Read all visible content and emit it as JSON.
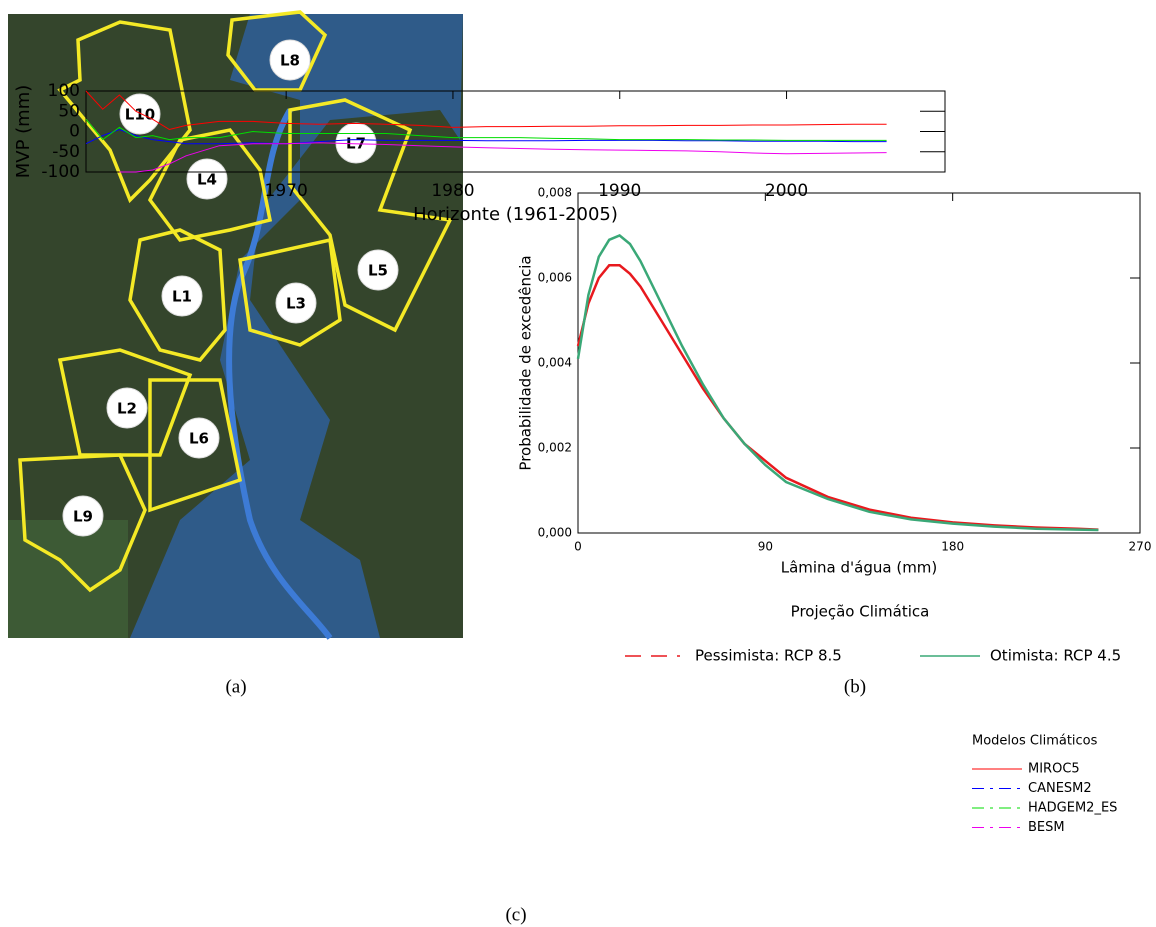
{
  "map": {
    "caption": "(a)",
    "labels": [
      "L8",
      "L10",
      "L7",
      "L4",
      "L5",
      "L1",
      "L3",
      "L2",
      "L6",
      "L9"
    ]
  },
  "chart_data": [
    {
      "type": "line",
      "caption": "(b)",
      "xlabel": "Lâmina d'água (mm)",
      "ylabel": "Probabilidade de excedência",
      "legend_title": "Projeção Climática",
      "legend": "below",
      "xlim": [
        0,
        270
      ],
      "xticks": [
        0,
        90,
        180,
        270
      ],
      "ylim": [
        0,
        0.008
      ],
      "yticks": [
        {
          "value": 0,
          "label": "0,000"
        },
        {
          "value": 0.002,
          "label": "0,002"
        },
        {
          "value": 0.004,
          "label": "0,004"
        },
        {
          "value": 0.006,
          "label": "0,006"
        },
        {
          "value": 0.008,
          "label": "0,008"
        }
      ],
      "x": [
        0,
        5,
        10,
        15,
        20,
        25,
        30,
        40,
        50,
        60,
        70,
        80,
        90,
        100,
        120,
        140,
        160,
        180,
        200,
        220,
        240,
        250
      ],
      "series": [
        {
          "name": "Pessimista: RCP 8.5",
          "color": "#e8191e",
          "values": [
            0.0044,
            0.0054,
            0.006,
            0.0063,
            0.0063,
            0.0061,
            0.0058,
            0.005,
            0.0042,
            0.0034,
            0.0027,
            0.0021,
            0.0017,
            0.0013,
            0.00085,
            0.00055,
            0.00036,
            0.00025,
            0.00018,
            0.00013,
            0.0001,
            8e-05
          ]
        },
        {
          "name": "Otimista: RCP 4.5",
          "color": "#3aa877",
          "values": [
            0.0041,
            0.0056,
            0.0065,
            0.0069,
            0.007,
            0.0068,
            0.0064,
            0.0054,
            0.0044,
            0.0035,
            0.0027,
            0.0021,
            0.0016,
            0.0012,
            0.0008,
            0.0005,
            0.00032,
            0.00022,
            0.00015,
            0.0001,
            8e-05,
            7e-05
          ]
        }
      ]
    },
    {
      "type": "line",
      "caption": "(c)",
      "xlabel": "Horizonte (1961-2005)",
      "ylabel": "MVP (mm)",
      "legend_title": "Modelos Climáticos",
      "legend": "right",
      "xlim": [
        1958,
        2009.5
      ],
      "xticks": [
        1970,
        1980,
        1990,
        2000
      ],
      "ylim": [
        -100,
        100
      ],
      "yticks": [
        -100,
        -50,
        0,
        50,
        100
      ],
      "x": [
        1958,
        1959,
        1960,
        1961,
        1962,
        1963,
        1964,
        1966,
        1968,
        1970,
        1972,
        1974,
        1976,
        1978,
        1980,
        1982,
        1984,
        1986,
        1988,
        1990,
        1992,
        1994,
        1996,
        1998,
        2000,
        2002,
        2004,
        2006
      ],
      "series": [
        {
          "name": "MIROC5",
          "color": "#ff0000",
          "values": [
            100,
            55,
            90,
            50,
            30,
            5,
            15,
            25,
            25,
            20,
            18,
            20,
            18,
            15,
            10,
            12,
            12,
            13,
            13,
            14,
            14,
            15,
            15,
            16,
            16,
            17,
            18,
            18
          ]
        },
        {
          "name": "CANESM2",
          "color": "#0000ff",
          "values": [
            -30,
            -10,
            5,
            -10,
            -20,
            -25,
            -30,
            -30,
            -28,
            -30,
            -25,
            -20,
            -22,
            -22,
            -22,
            -23,
            -23,
            -23,
            -22,
            -22,
            -22,
            -23,
            -23,
            -24,
            -24,
            -24,
            -25,
            -25
          ]
        },
        {
          "name": "HADGEM2_ES",
          "color": "#00dd00",
          "values": [
            30,
            -20,
            10,
            -15,
            -10,
            -20,
            -15,
            -15,
            0,
            -5,
            -5,
            -5,
            -5,
            -10,
            -15,
            -15,
            -15,
            -17,
            -18,
            -20,
            -20,
            -20,
            -21,
            -21,
            -22,
            -22,
            -22,
            -22
          ]
        },
        {
          "name": "BESM",
          "color": "#ee00ee",
          "values": [
            null,
            null,
            -100,
            -100,
            -95,
            -80,
            -60,
            -35,
            -30,
            -30,
            -28,
            -30,
            -32,
            -35,
            -38,
            -40,
            -42,
            -44,
            -45,
            -46,
            -47,
            -48,
            -50,
            -53,
            -55,
            -54,
            -53,
            -52
          ]
        }
      ]
    }
  ]
}
